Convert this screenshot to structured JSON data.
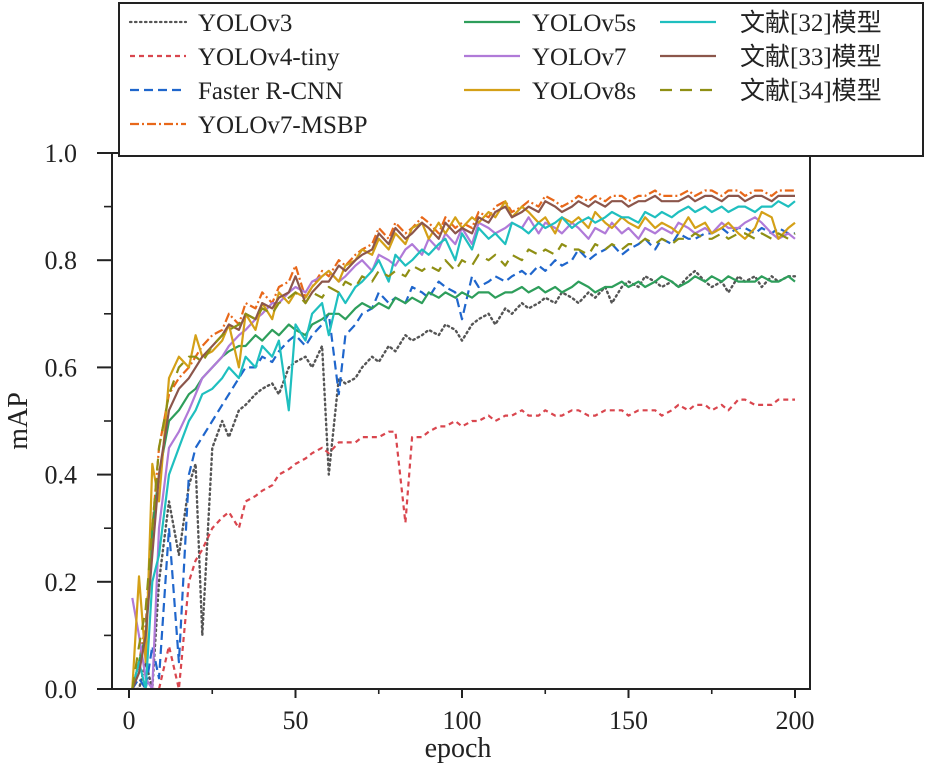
{
  "chart_data": {
    "type": "line",
    "title": "",
    "xlabel": "epoch",
    "ylabel": "mAP",
    "xlim": [
      -5,
      205
    ],
    "ylim": [
      0.0,
      1.0
    ],
    "x_ticks": [
      0,
      50,
      100,
      150,
      200
    ],
    "x_tick_labels": [
      "0",
      "50",
      "100",
      "150",
      "200"
    ],
    "x_minor_ticks": [
      25,
      75,
      125,
      175
    ],
    "y_ticks": [
      0.0,
      0.2,
      0.4,
      0.6,
      0.8,
      1.0
    ],
    "y_tick_labels": [
      "0.0",
      "0.2",
      "0.4",
      "0.6",
      "0.8",
      "1.0"
    ],
    "y_minor_ticks": [
      0.1,
      0.3,
      0.5,
      0.7,
      0.9
    ],
    "grid": false,
    "legend_position": "top",
    "legend_columns": 3,
    "x": [
      1,
      3,
      5,
      7,
      9,
      12,
      15,
      18,
      20,
      22,
      25,
      28,
      30,
      33,
      35,
      38,
      40,
      43,
      45,
      48,
      50,
      53,
      55,
      58,
      60,
      63,
      65,
      68,
      70,
      73,
      75,
      78,
      80,
      83,
      85,
      88,
      90,
      93,
      95,
      98,
      100,
      103,
      105,
      108,
      110,
      113,
      115,
      118,
      120,
      123,
      125,
      128,
      130,
      133,
      135,
      138,
      140,
      143,
      145,
      148,
      150,
      153,
      155,
      158,
      160,
      163,
      165,
      168,
      170,
      173,
      175,
      178,
      180,
      183,
      185,
      188,
      190,
      193,
      195,
      198,
      200
    ],
    "series": [
      {
        "name": "YOLOv3",
        "color": "#555555",
        "dash": "dot",
        "values": [
          0.0,
          0.0,
          0.05,
          0.0,
          0.2,
          0.35,
          0.25,
          0.38,
          0.42,
          0.1,
          0.45,
          0.5,
          0.47,
          0.52,
          0.53,
          0.55,
          0.56,
          0.57,
          0.55,
          0.6,
          0.61,
          0.62,
          0.6,
          0.64,
          0.4,
          0.58,
          0.57,
          0.58,
          0.6,
          0.62,
          0.61,
          0.64,
          0.63,
          0.66,
          0.65,
          0.66,
          0.67,
          0.66,
          0.68,
          0.67,
          0.65,
          0.68,
          0.69,
          0.7,
          0.68,
          0.71,
          0.7,
          0.72,
          0.71,
          0.72,
          0.73,
          0.72,
          0.74,
          0.73,
          0.72,
          0.74,
          0.73,
          0.75,
          0.72,
          0.75,
          0.76,
          0.75,
          0.77,
          0.76,
          0.75,
          0.76,
          0.75,
          0.77,
          0.78,
          0.76,
          0.75,
          0.76,
          0.74,
          0.77,
          0.76,
          0.77,
          0.75,
          0.77,
          0.76,
          0.77,
          0.77
        ]
      },
      {
        "name": "YOLOv4-tiny",
        "color": "#d9464e",
        "dash": "short-dash",
        "values": [
          0.0,
          0.0,
          0.0,
          0.0,
          0.0,
          0.08,
          0.0,
          0.2,
          0.24,
          0.26,
          0.3,
          0.32,
          0.33,
          0.3,
          0.35,
          0.36,
          0.37,
          0.38,
          0.4,
          0.41,
          0.42,
          0.43,
          0.44,
          0.45,
          0.44,
          0.46,
          0.46,
          0.46,
          0.47,
          0.47,
          0.47,
          0.48,
          0.48,
          0.31,
          0.47,
          0.47,
          0.48,
          0.49,
          0.49,
          0.5,
          0.49,
          0.5,
          0.5,
          0.51,
          0.5,
          0.51,
          0.51,
          0.52,
          0.51,
          0.51,
          0.52,
          0.51,
          0.51,
          0.52,
          0.52,
          0.51,
          0.51,
          0.52,
          0.52,
          0.52,
          0.51,
          0.52,
          0.52,
          0.52,
          0.51,
          0.52,
          0.53,
          0.52,
          0.53,
          0.53,
          0.52,
          0.53,
          0.52,
          0.54,
          0.54,
          0.53,
          0.53,
          0.53,
          0.54,
          0.54,
          0.54
        ]
      },
      {
        "name": "Faster R-CNN",
        "color": "#1f66cc",
        "dash": "dash",
        "values": [
          0.0,
          0.02,
          0.0,
          0.08,
          0.02,
          0.3,
          0.05,
          0.4,
          0.45,
          0.47,
          0.5,
          0.53,
          0.55,
          0.58,
          0.6,
          0.6,
          0.62,
          0.61,
          0.63,
          0.65,
          0.66,
          0.64,
          0.66,
          0.68,
          0.7,
          0.55,
          0.66,
          0.68,
          0.7,
          0.71,
          0.74,
          0.72,
          0.73,
          0.72,
          0.75,
          0.74,
          0.73,
          0.76,
          0.75,
          0.74,
          0.69,
          0.77,
          0.75,
          0.76,
          0.77,
          0.76,
          0.77,
          0.78,
          0.77,
          0.79,
          0.78,
          0.8,
          0.79,
          0.8,
          0.82,
          0.8,
          0.81,
          0.82,
          0.83,
          0.81,
          0.82,
          0.83,
          0.84,
          0.82,
          0.84,
          0.83,
          0.85,
          0.84,
          0.84,
          0.85,
          0.85,
          0.86,
          0.85,
          0.86,
          0.86,
          0.85,
          0.86,
          0.85,
          0.86,
          0.85,
          0.85
        ]
      },
      {
        "name": "YOLOv7-MSBP",
        "color": "#e8681a",
        "dash": "dash-dot",
        "values": [
          0.0,
          0.05,
          0.12,
          0.3,
          0.45,
          0.55,
          0.58,
          0.6,
          0.62,
          0.64,
          0.66,
          0.67,
          0.7,
          0.68,
          0.72,
          0.71,
          0.74,
          0.72,
          0.75,
          0.76,
          0.79,
          0.73,
          0.75,
          0.78,
          0.77,
          0.8,
          0.79,
          0.81,
          0.82,
          0.83,
          0.86,
          0.84,
          0.87,
          0.85,
          0.86,
          0.88,
          0.87,
          0.85,
          0.88,
          0.86,
          0.87,
          0.86,
          0.89,
          0.88,
          0.9,
          0.91,
          0.89,
          0.9,
          0.91,
          0.9,
          0.92,
          0.91,
          0.9,
          0.91,
          0.92,
          0.91,
          0.92,
          0.91,
          0.92,
          0.92,
          0.91,
          0.92,
          0.92,
          0.93,
          0.92,
          0.92,
          0.92,
          0.93,
          0.92,
          0.93,
          0.93,
          0.92,
          0.93,
          0.93,
          0.92,
          0.93,
          0.93,
          0.92,
          0.93,
          0.93,
          0.93
        ]
      },
      {
        "name": "YOLOv5s",
        "color": "#2e9e5b",
        "dash": "solid",
        "values": [
          0.0,
          0.05,
          0.1,
          0.3,
          0.4,
          0.5,
          0.52,
          0.55,
          0.56,
          0.58,
          0.6,
          0.62,
          0.63,
          0.64,
          0.64,
          0.66,
          0.65,
          0.67,
          0.66,
          0.68,
          0.67,
          0.66,
          0.68,
          0.69,
          0.7,
          0.7,
          0.69,
          0.71,
          0.72,
          0.71,
          0.72,
          0.71,
          0.73,
          0.72,
          0.73,
          0.72,
          0.74,
          0.73,
          0.74,
          0.73,
          0.74,
          0.73,
          0.74,
          0.74,
          0.73,
          0.74,
          0.74,
          0.75,
          0.74,
          0.75,
          0.74,
          0.75,
          0.74,
          0.75,
          0.76,
          0.75,
          0.74,
          0.75,
          0.75,
          0.76,
          0.75,
          0.76,
          0.75,
          0.76,
          0.77,
          0.76,
          0.75,
          0.76,
          0.77,
          0.76,
          0.77,
          0.76,
          0.77,
          0.76,
          0.76,
          0.76,
          0.77,
          0.76,
          0.76,
          0.77,
          0.76
        ]
      },
      {
        "name": "YOLOv7",
        "color": "#b07ad8",
        "dash": "solid",
        "values": [
          0.17,
          0.1,
          0.02,
          0.0,
          0.3,
          0.45,
          0.48,
          0.52,
          0.55,
          0.58,
          0.6,
          0.62,
          0.64,
          0.66,
          0.67,
          0.69,
          0.7,
          0.72,
          0.72,
          0.74,
          0.75,
          0.74,
          0.76,
          0.77,
          0.78,
          0.76,
          0.77,
          0.79,
          0.8,
          0.78,
          0.81,
          0.8,
          0.79,
          0.82,
          0.83,
          0.81,
          0.84,
          0.82,
          0.85,
          0.83,
          0.86,
          0.83,
          0.87,
          0.86,
          0.85,
          0.86,
          0.87,
          0.86,
          0.88,
          0.85,
          0.87,
          0.86,
          0.85,
          0.87,
          0.86,
          0.84,
          0.86,
          0.85,
          0.87,
          0.85,
          0.86,
          0.84,
          0.86,
          0.85,
          0.86,
          0.85,
          0.87,
          0.86,
          0.85,
          0.86,
          0.85,
          0.87,
          0.86,
          0.86,
          0.87,
          0.88,
          0.87,
          0.85,
          0.84,
          0.85,
          0.84
        ]
      },
      {
        "name": "YOLOv8s",
        "color": "#d4a017",
        "dash": "solid",
        "values": [
          0.0,
          0.21,
          0.05,
          0.42,
          0.35,
          0.58,
          0.62,
          0.6,
          0.66,
          0.62,
          0.63,
          0.65,
          0.68,
          0.6,
          0.7,
          0.67,
          0.72,
          0.69,
          0.74,
          0.72,
          0.74,
          0.73,
          0.75,
          0.77,
          0.78,
          0.76,
          0.79,
          0.8,
          0.82,
          0.81,
          0.84,
          0.82,
          0.85,
          0.83,
          0.86,
          0.87,
          0.84,
          0.87,
          0.85,
          0.88,
          0.86,
          0.88,
          0.87,
          0.89,
          0.88,
          0.91,
          0.88,
          0.9,
          0.89,
          0.87,
          0.88,
          0.85,
          0.88,
          0.87,
          0.88,
          0.86,
          0.89,
          0.87,
          0.86,
          0.88,
          0.87,
          0.86,
          0.88,
          0.86,
          0.87,
          0.86,
          0.85,
          0.88,
          0.86,
          0.87,
          0.85,
          0.86,
          0.87,
          0.85,
          0.84,
          0.86,
          0.89,
          0.88,
          0.84,
          0.86,
          0.87
        ]
      },
      {
        "name": "文献[32]模型",
        "color": "#1fbfbf",
        "dash": "solid",
        "values": [
          0.0,
          0.05,
          0.0,
          0.2,
          0.25,
          0.4,
          0.45,
          0.5,
          0.52,
          0.55,
          0.56,
          0.58,
          0.6,
          0.58,
          0.62,
          0.6,
          0.64,
          0.62,
          0.65,
          0.52,
          0.68,
          0.65,
          0.7,
          0.72,
          0.66,
          0.74,
          0.72,
          0.75,
          0.76,
          0.78,
          0.8,
          0.76,
          0.81,
          0.79,
          0.8,
          0.82,
          0.81,
          0.83,
          0.84,
          0.8,
          0.85,
          0.82,
          0.86,
          0.84,
          0.85,
          0.83,
          0.87,
          0.86,
          0.85,
          0.87,
          0.86,
          0.87,
          0.88,
          0.86,
          0.87,
          0.88,
          0.87,
          0.88,
          0.89,
          0.88,
          0.88,
          0.87,
          0.89,
          0.88,
          0.89,
          0.88,
          0.89,
          0.9,
          0.89,
          0.9,
          0.89,
          0.9,
          0.89,
          0.9,
          0.9,
          0.89,
          0.9,
          0.9,
          0.91,
          0.9,
          0.91
        ]
      },
      {
        "name": "文献[33]模型",
        "color": "#8c564b",
        "dash": "solid",
        "values": [
          0.0,
          0.03,
          0.1,
          0.25,
          0.4,
          0.52,
          0.56,
          0.58,
          0.6,
          0.62,
          0.64,
          0.66,
          0.68,
          0.67,
          0.7,
          0.69,
          0.72,
          0.71,
          0.73,
          0.74,
          0.77,
          0.72,
          0.74,
          0.76,
          0.76,
          0.79,
          0.78,
          0.8,
          0.81,
          0.82,
          0.85,
          0.83,
          0.86,
          0.84,
          0.85,
          0.87,
          0.86,
          0.84,
          0.87,
          0.85,
          0.86,
          0.85,
          0.88,
          0.87,
          0.89,
          0.9,
          0.88,
          0.89,
          0.9,
          0.89,
          0.91,
          0.9,
          0.89,
          0.9,
          0.91,
          0.9,
          0.91,
          0.9,
          0.91,
          0.91,
          0.9,
          0.91,
          0.91,
          0.92,
          0.91,
          0.91,
          0.91,
          0.92,
          0.91,
          0.92,
          0.92,
          0.91,
          0.92,
          0.92,
          0.91,
          0.92,
          0.92,
          0.91,
          0.92,
          0.92,
          0.92
        ]
      },
      {
        "name": "文献[34]模型",
        "color": "#8f8f14",
        "dash": "long-dash",
        "values": [
          0.0,
          0.08,
          0.15,
          0.3,
          0.45,
          0.55,
          0.6,
          0.62,
          0.62,
          0.61,
          0.64,
          0.66,
          0.67,
          0.68,
          0.7,
          0.69,
          0.71,
          0.7,
          0.72,
          0.73,
          0.74,
          0.72,
          0.74,
          0.73,
          0.75,
          0.74,
          0.76,
          0.75,
          0.77,
          0.76,
          0.78,
          0.77,
          0.78,
          0.77,
          0.79,
          0.78,
          0.79,
          0.78,
          0.8,
          0.78,
          0.8,
          0.79,
          0.81,
          0.8,
          0.81,
          0.79,
          0.81,
          0.8,
          0.82,
          0.81,
          0.82,
          0.81,
          0.83,
          0.82,
          0.82,
          0.81,
          0.83,
          0.82,
          0.83,
          0.82,
          0.83,
          0.83,
          0.84,
          0.83,
          0.84,
          0.83,
          0.84,
          0.84,
          0.85,
          0.84,
          0.84,
          0.85,
          0.84,
          0.85,
          0.85,
          0.84,
          0.85,
          0.84,
          0.85,
          0.84,
          0.85
        ]
      }
    ]
  }
}
